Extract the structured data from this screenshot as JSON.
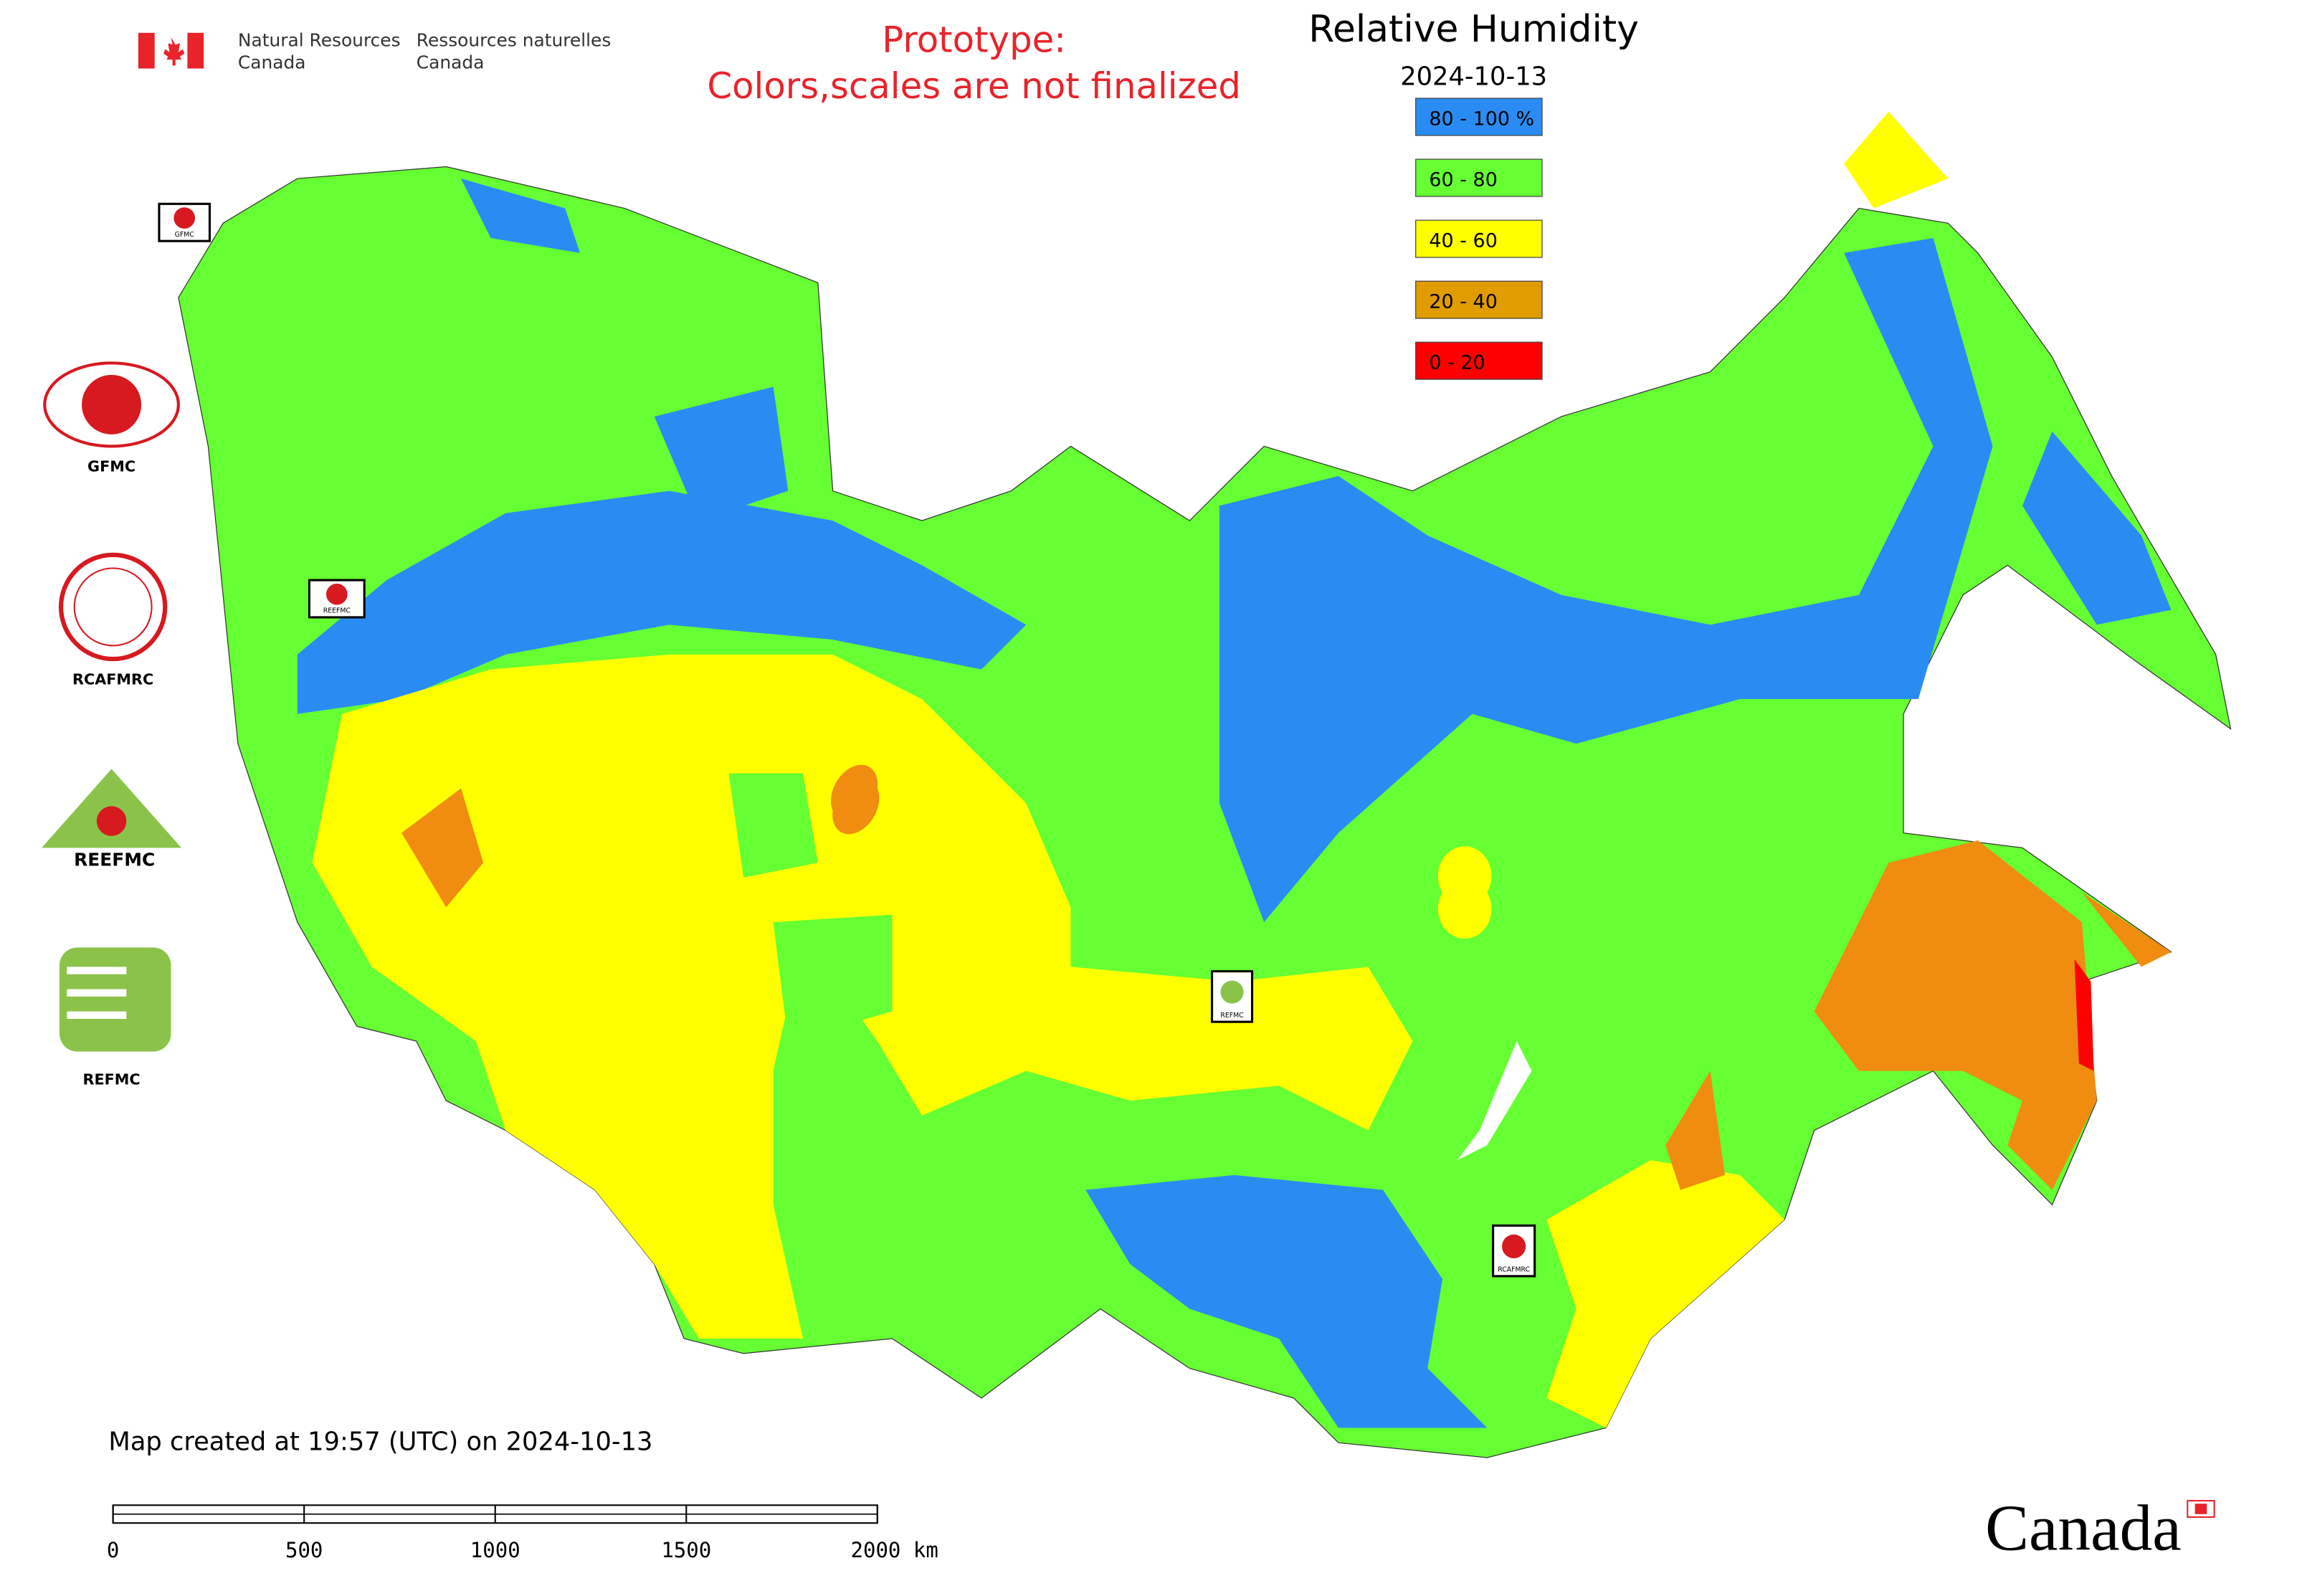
{
  "header": {
    "agency_en": [
      "Natural Resources",
      "Canada"
    ],
    "agency_fr": [
      "Ressources naturelles",
      "Canada"
    ],
    "notice": [
      "Prototype:",
      "Colors,scales are not finalized"
    ],
    "title": "Relative Humidity",
    "date": "2024-10-13"
  },
  "legend": [
    {
      "label": "80 - 100 %",
      "color": "#2a8cf2"
    },
    {
      "label": "60 - 80",
      "color": "#66ff33"
    },
    {
      "label": "40 - 60",
      "color": "#ffff00"
    },
    {
      "label": "20 - 40",
      "color": "#e09c00"
    },
    {
      "label": "0 - 20",
      "color": "#ff0000"
    }
  ],
  "logos": [
    "GFMC",
    "RCAFMRC",
    "REEFMC",
    "REFMC"
  ],
  "map_markers": [
    "GFMC",
    "REEFMC",
    "REFMC",
    "RCAFMRC"
  ],
  "footer": {
    "created": "Map created at 19:57 (UTC) on 2024-10-13",
    "wordmark": "Canada"
  },
  "scale_bar": {
    "range": [
      0,
      2000
    ],
    "ticks": [
      0,
      500,
      1000,
      1500,
      {
        "value": 2000,
        "label": "2000 km"
      }
    ]
  }
}
